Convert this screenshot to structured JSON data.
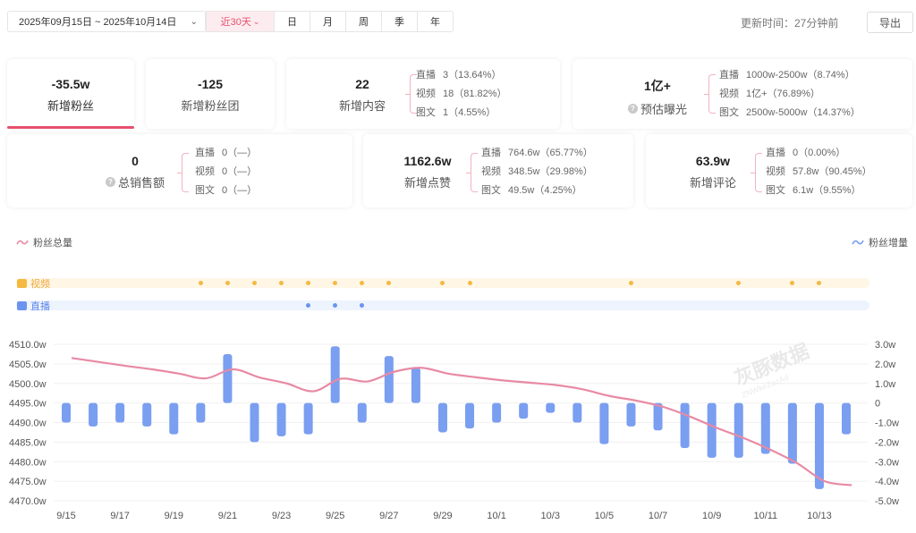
{
  "toolbar": {
    "date_range": "2025年09月15日 ~ 2025年10月14日",
    "periods": [
      {
        "label": "近30天",
        "active": true
      },
      {
        "label": "日",
        "active": false
      },
      {
        "label": "月",
        "active": false
      },
      {
        "label": "周",
        "active": false
      },
      {
        "label": "季",
        "active": false
      },
      {
        "label": "年",
        "active": false
      }
    ],
    "update_time": "更新时间：27分钟前",
    "export_label": "导出"
  },
  "cards": {
    "fans": {
      "value": "-35.5w",
      "label": "新增粉丝"
    },
    "fan_group": {
      "value": "-125",
      "label": "新增粉丝团"
    },
    "content": {
      "value": "22",
      "label": "新增内容",
      "rows": [
        {
          "k": "直播",
          "v": "3（13.64%）"
        },
        {
          "k": "视频",
          "v": "18（81.82%）"
        },
        {
          "k": "图文",
          "v": "1（4.55%）"
        }
      ]
    },
    "exposure": {
      "value": "1亿+",
      "label": "预估曝光",
      "rows": [
        {
          "k": "直播",
          "v": "1000w-2500w（8.74%）"
        },
        {
          "k": "视频",
          "v": "1亿+（76.89%）"
        },
        {
          "k": "图文",
          "v": "2500w-5000w（14.37%）"
        }
      ]
    },
    "sales": {
      "value": "0",
      "label": "总销售额",
      "rows": [
        {
          "k": "直播",
          "v": "0（—）"
        },
        {
          "k": "视频",
          "v": "0（—）"
        },
        {
          "k": "图文",
          "v": "0（—）"
        }
      ]
    },
    "likes": {
      "value": "1162.6w",
      "label": "新增点赞",
      "rows": [
        {
          "k": "直播",
          "v": "764.6w（65.77%）"
        },
        {
          "k": "视频",
          "v": "348.5w（29.98%）"
        },
        {
          "k": "图文",
          "v": "49.5w（4.25%）"
        }
      ]
    },
    "comments": {
      "value": "63.9w",
      "label": "新增评论",
      "rows": [
        {
          "k": "直播",
          "v": "0（0.00%）"
        },
        {
          "k": "视频",
          "v": "57.8w（90.45%）"
        },
        {
          "k": "图文",
          "v": "6.1w（9.55%）"
        }
      ]
    }
  },
  "legend": {
    "total": "粉丝总量",
    "increment": "粉丝增量"
  },
  "timeline": {
    "video_label": "视频",
    "live_label": "直播",
    "video_days": [
      5,
      6,
      7,
      8,
      9,
      10,
      11,
      12,
      14,
      15,
      21,
      25,
      27,
      28
    ],
    "live_days": [
      9,
      10,
      11
    ],
    "colors": {
      "video": "#f5b942",
      "live": "#6b94f0",
      "video_track": "#fff6e6",
      "live_track": "#eef4fe"
    }
  },
  "watermark": {
    "text": "灰豚数据",
    "sub": "ZNWkeZazAd"
  },
  "chart_data": {
    "type": "line",
    "categories": [
      "9/15",
      "9/16",
      "9/17",
      "9/18",
      "9/19",
      "9/20",
      "9/21",
      "9/22",
      "9/23",
      "9/24",
      "9/25",
      "9/26",
      "9/27",
      "9/28",
      "9/29",
      "9/30",
      "10/1",
      "10/2",
      "10/3",
      "10/4",
      "10/5",
      "10/6",
      "10/7",
      "10/8",
      "10/9",
      "10/10",
      "10/11",
      "10/12",
      "10/13",
      "10/14"
    ],
    "x_tick_labels": [
      "9/15",
      "9/17",
      "9/19",
      "9/21",
      "9/23",
      "9/25",
      "9/27",
      "9/29",
      "10/1",
      "10/3",
      "10/5",
      "10/7",
      "10/9",
      "10/11",
      "10/13"
    ],
    "y_left": {
      "min": 4470,
      "max": 4510,
      "ticks": [
        "4470.0w",
        "4475.0w",
        "4480.0w",
        "4485.0w",
        "4490.0w",
        "4495.0w",
        "4500.0w",
        "4505.0w",
        "4510.0w"
      ]
    },
    "y_right": {
      "min": -5,
      "max": 3,
      "ticks": [
        "-5.0w",
        "-4.0w",
        "-3.0w",
        "-2.0w",
        "-1.0w",
        "0",
        "1.0w",
        "2.0w",
        "3.0w"
      ]
    },
    "series": [
      {
        "name": "粉丝总量",
        "type": "line",
        "axis": "left",
        "color": "#e88aa4",
        "values": [
          4506.5,
          4505.5,
          4504.5,
          4503.6,
          4502.5,
          4501.3,
          4503.6,
          4501.5,
          4500.0,
          4498.0,
          4501.2,
          4500.5,
          4503.0,
          4504.0,
          4502.5,
          4501.6,
          4500.8,
          4500.2,
          4499.6,
          4498.5,
          4496.8,
          4495.6,
          4494.0,
          4491.5,
          4488.6,
          4486.0,
          4483.0,
          4479.5,
          4475.0,
          4474.0
        ]
      },
      {
        "name": "粉丝增量",
        "type": "bar",
        "axis": "right",
        "color": "#7a9ef0",
        "values": [
          -1.0,
          -1.2,
          -1.0,
          -1.2,
          -1.6,
          -1.0,
          2.5,
          -2.0,
          -1.7,
          -1.6,
          2.9,
          -1.0,
          2.4,
          1.8,
          -1.5,
          -1.3,
          -1.0,
          -0.8,
          -0.5,
          -1.0,
          -2.1,
          -1.2,
          -1.4,
          -2.3,
          -2.8,
          -2.8,
          -2.6,
          -3.1,
          -4.4,
          -1.6
        ]
      }
    ]
  }
}
